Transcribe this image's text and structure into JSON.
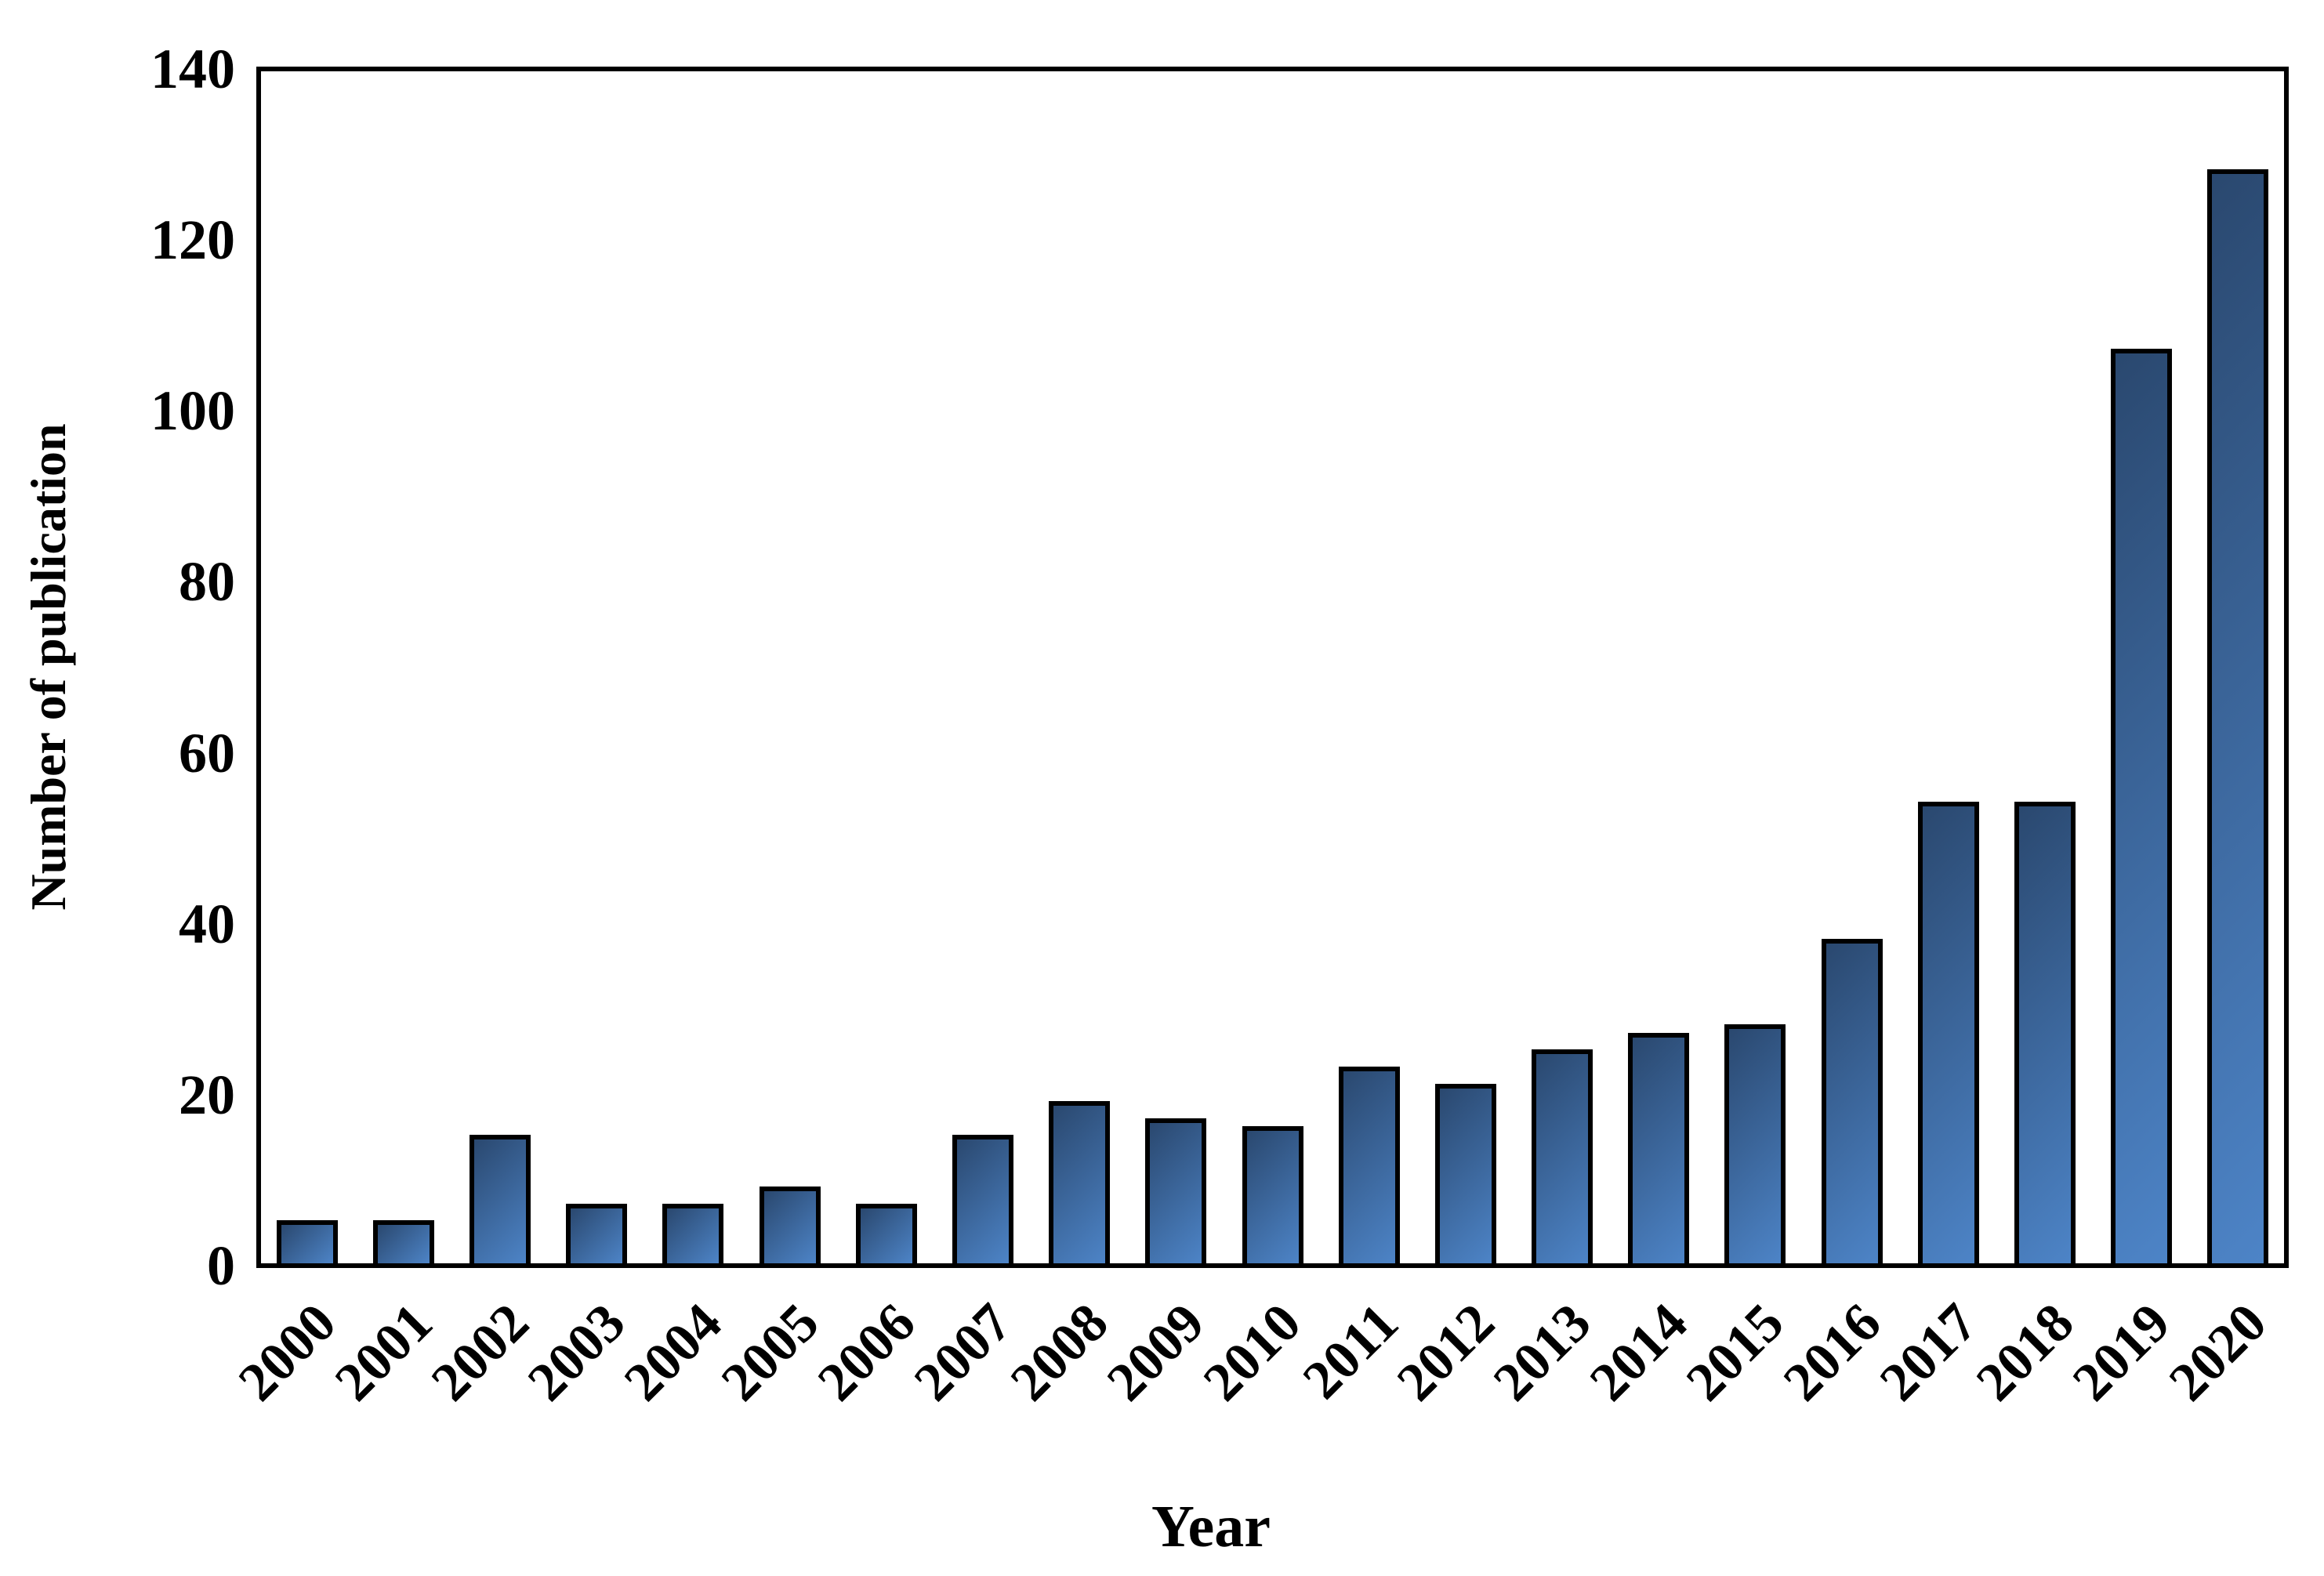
{
  "chart_data": {
    "type": "bar",
    "title": "",
    "xlabel": "Year",
    "ylabel": "Number of publication",
    "categories": [
      "2000",
      "2001",
      "2002",
      "2003",
      "2004",
      "2005",
      "2006",
      "2007",
      "2008",
      "2009",
      "2010",
      "2011",
      "2012",
      "2013",
      "2014",
      "2015",
      "2016",
      "2017",
      "2018",
      "2019",
      "2020"
    ],
    "values": [
      5,
      5,
      15,
      7,
      7,
      9,
      7,
      15,
      19,
      17,
      16,
      23,
      21,
      25,
      27,
      28,
      38,
      54,
      54,
      107,
      128
    ],
    "ylim": [
      0,
      140
    ],
    "yticks": [
      0,
      20,
      40,
      60,
      80,
      100,
      120,
      140
    ],
    "grid": false,
    "legend": "none",
    "bar_gradient_dark": "#2a486f",
    "bar_gradient_light": "#4d84c7",
    "bar_border_color": "#000000",
    "axis_color": "#000000",
    "background_color": "#ffffff"
  }
}
